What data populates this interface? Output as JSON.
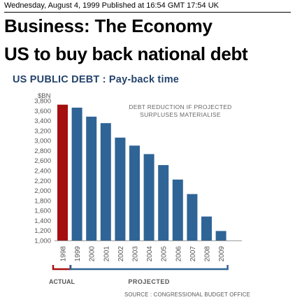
{
  "header": {
    "dateline": "Wednesday, August 4, 1999 Published at 16:54 GMT 17:54 UK",
    "section": "Business: The Economy",
    "headline": "US to buy back national debt"
  },
  "chart_data": {
    "type": "bar",
    "title": "US PUBLIC DEBT : Pay-back time",
    "ylabel": "$BN",
    "xlabel": "",
    "ylim": [
      1000,
      3800
    ],
    "yticks": [
      1000,
      1200,
      1400,
      1600,
      1800,
      2000,
      2200,
      2400,
      2600,
      2800,
      3000,
      3200,
      3400,
      3600,
      3800
    ],
    "ytick_labels": [
      "1,000",
      "1,200",
      "1,400",
      "1,600",
      "1,800",
      "2,000",
      "2,200",
      "2,400",
      "2,600",
      "2,800",
      "3,000",
      "3,200",
      "3,400",
      "3,600",
      "3,800"
    ],
    "categories": [
      "1998",
      "1999",
      "2000",
      "2001",
      "2002",
      "2003",
      "2004",
      "2005",
      "2006",
      "2007",
      "2008",
      "2009"
    ],
    "values": [
      3720,
      3660,
      3480,
      3350,
      3060,
      2900,
      2730,
      2510,
      2220,
      1930,
      1480,
      1190
    ],
    "bar_kinds": [
      "actual",
      "projected",
      "projected",
      "projected",
      "projected",
      "projected",
      "projected",
      "projected",
      "projected",
      "projected",
      "projected",
      "projected"
    ],
    "colors": {
      "actual": "#a50f0f",
      "projected": "#2f6496",
      "axis_text": "#555555",
      "title": "#24446c"
    },
    "annotation": [
      "DEBT REDUCTION IF PROJECTED",
      "SURPLUSES MATERIALISE"
    ],
    "legend": {
      "actual": "ACTUAL",
      "projected": "PROJECTED",
      "placement": "bottom"
    },
    "source": "SOURCE : CONGRESSIONAL BUDGET OFFICE",
    "grid": false
  }
}
